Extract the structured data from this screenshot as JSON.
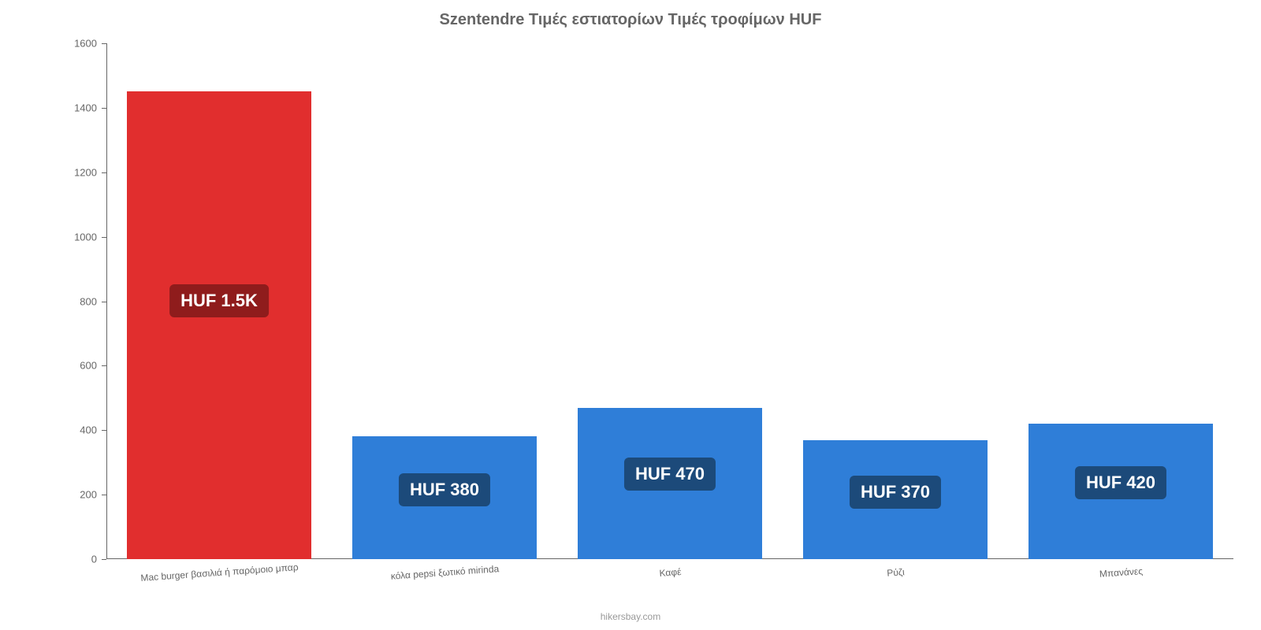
{
  "chart": {
    "type": "bar",
    "title": "Szentendre Τιμές εστιατορίων Τιμές τροφίμων HUF",
    "title_fontsize": 20,
    "title_color": "#666666",
    "title_weight": "bold",
    "background_color": "#ffffff",
    "axis_color": "#666666",
    "ylim": [
      0,
      1600
    ],
    "ytick_step": 200,
    "ytick_fontsize": 13,
    "ytick_color": "#666666",
    "xtick_fontsize": 12,
    "xtick_color": "#666666",
    "xtick_rotation_deg": -4,
    "bar_width_ratio": 0.82,
    "categories": [
      "Mac burger βασιλιά ή παρόμοιο μπαρ",
      "κόλα pepsi ξωτικό mirinda",
      "Καφέ",
      "Ρύζι",
      "Μπανάνες"
    ],
    "values": [
      1450,
      380,
      470,
      370,
      420
    ],
    "bar_colors": [
      "#e12e2e",
      "#2f7ed8",
      "#2f7ed8",
      "#2f7ed8",
      "#2f7ed8"
    ],
    "badge_labels": [
      "HUF 1.5K",
      "HUF 380",
      "HUF 470",
      "HUF 370",
      "HUF 420"
    ],
    "badge_bg_colors": [
      "#8f1c1c",
      "#1c4a7a",
      "#1c4a7a",
      "#1c4a7a",
      "#1c4a7a"
    ],
    "badge_fontsize": 22,
    "badge_text_color": "#ffffff",
    "attribution": "hikersbay.com",
    "attribution_fontsize": 12,
    "attribution_color": "#999999"
  }
}
